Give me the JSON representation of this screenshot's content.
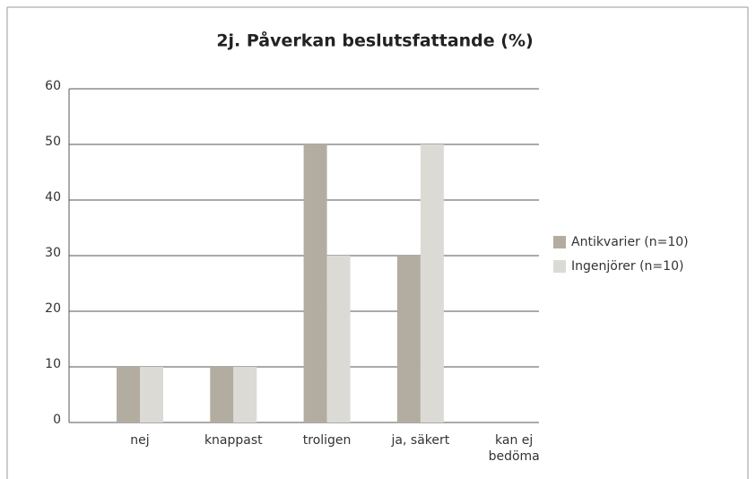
{
  "chart_data": {
    "type": "bar",
    "title": "2j. Påverkan beslutsfattande (%)",
    "categories": [
      "nej",
      "knappast",
      "troligen",
      "ja, säkert",
      "kan ej bedöma"
    ],
    "series": [
      {
        "name": "Antikvarier (n=10)",
        "color": "#b3aca0",
        "values": [
          10,
          10,
          50,
          30,
          0
        ]
      },
      {
        "name": "Ingenjörer (n=10)",
        "color": "#dcdad5",
        "values": [
          10,
          10,
          30,
          50,
          0
        ]
      }
    ],
    "ylim": [
      0,
      60
    ],
    "yticks": [
      0,
      10,
      20,
      30,
      40,
      50,
      60
    ],
    "grid": true,
    "legend": "right"
  }
}
